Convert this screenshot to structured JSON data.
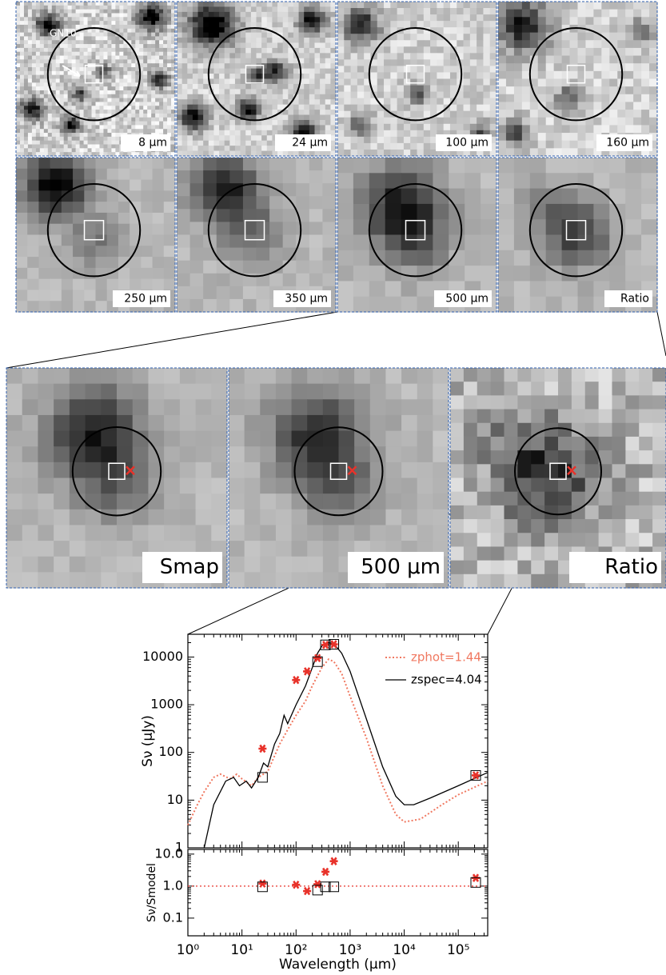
{
  "panels": {
    "source_label": "GN10",
    "top": [
      "8 μm",
      "24 μm",
      "100 μm",
      "160 μm",
      "250 μm",
      "350 μm",
      "500 μm",
      "Ratio"
    ],
    "zoom": [
      "Smap",
      "500 μm",
      "Ratio"
    ]
  },
  "chart_data": [
    {
      "type": "line",
      "ylabel": "Sν (μJy)",
      "log_x": true,
      "log_y": true,
      "xlim": [
        1,
        350000
      ],
      "ylim": [
        1,
        30000
      ],
      "yticks": [
        1,
        10,
        100,
        1000,
        10000
      ],
      "series": [
        {
          "name": "zphot=1.44",
          "color": "#f07860",
          "style": "dotted",
          "x": [
            1,
            1.5,
            2,
            3,
            4,
            6,
            8,
            10,
            15,
            20,
            30,
            50,
            70,
            100,
            150,
            200,
            300,
            400,
            500,
            700,
            1000,
            2000,
            4000,
            7000,
            10000,
            20000,
            50000,
            100000,
            350000
          ],
          "values": [
            3,
            8,
            15,
            30,
            35,
            28,
            35,
            28,
            20,
            30,
            40,
            150,
            300,
            600,
            1200,
            2500,
            6000,
            9000,
            8000,
            4500,
            1500,
            200,
            20,
            5,
            3.5,
            4,
            8,
            13,
            25
          ]
        },
        {
          "name": "zspec=4.04",
          "color": "#000000",
          "style": "solid",
          "x": [
            2,
            3,
            5,
            7,
            9,
            12,
            15,
            20,
            25,
            30,
            40,
            50,
            60,
            70,
            100,
            150,
            200,
            250,
            300,
            400,
            500,
            700,
            1000,
            2000,
            4000,
            7000,
            10000,
            15000,
            30000,
            100000,
            350000
          ],
          "values": [
            1,
            8,
            25,
            30,
            20,
            25,
            18,
            30,
            60,
            50,
            150,
            250,
            600,
            400,
            1000,
            2500,
            6000,
            12000,
            17000,
            20000,
            19000,
            12000,
            5000,
            500,
            50,
            12,
            8,
            8,
            11,
            20,
            38
          ]
        },
        {
          "marker": "star",
          "color": "#e8322a",
          "x": [
            24,
            100,
            160,
            250,
            350,
            500,
            210000
          ],
          "values": [
            120,
            3300,
            5000,
            9500,
            18000,
            18500,
            33
          ]
        },
        {
          "marker": "box",
          "color": "#000000",
          "x": [
            24,
            250,
            350,
            500,
            210000
          ],
          "values": [
            30,
            8000,
            18000,
            18500,
            33
          ]
        }
      ]
    },
    {
      "type": "scatter",
      "ylabel": "Sν/Smodel",
      "xlabel": "Wavelength (μm)",
      "log_x": true,
      "log_y": true,
      "xlim": [
        1,
        350000
      ],
      "ylim": [
        0.028,
        14
      ],
      "xticks": [
        {
          "value": 1,
          "label": "10⁰"
        },
        {
          "value": 10,
          "label": "10¹"
        },
        {
          "value": 100,
          "label": "10²"
        },
        {
          "value": 1000,
          "label": "10³"
        },
        {
          "value": 10000,
          "label": "10⁴"
        },
        {
          "value": 100000,
          "label": "10⁵"
        }
      ],
      "yticks": [
        {
          "value": 0.1,
          "label": "0.1"
        },
        {
          "value": 1,
          "label": "1.0"
        },
        {
          "value": 10,
          "label": "10.0"
        }
      ],
      "ref_line": 1,
      "series": [
        {
          "marker": "star",
          "color": "#e8322a",
          "x": [
            24,
            100,
            160,
            250,
            350,
            500,
            210000
          ],
          "values": [
            1.2,
            1.1,
            0.7,
            1.15,
            2.8,
            6,
            1.8
          ]
        },
        {
          "marker": "box",
          "color": "#000000",
          "x": [
            24,
            250,
            350,
            500,
            210000
          ],
          "values": [
            0.95,
            0.75,
            0.95,
            0.95,
            1.3
          ]
        }
      ]
    }
  ]
}
